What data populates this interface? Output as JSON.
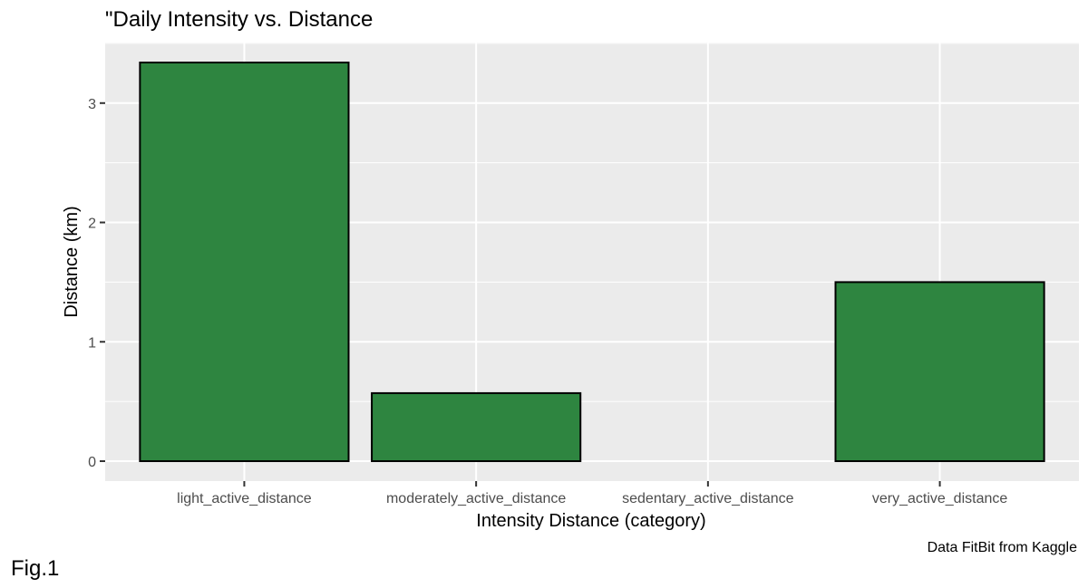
{
  "chart_data": {
    "type": "bar",
    "title": "\"Daily Intensity vs. Distance",
    "xlabel": "Intensity Distance (category)",
    "ylabel": "Distance (km)",
    "caption": "Data FitBit from Kaggle",
    "tag": "Fig.1",
    "categories": [
      "light_active_distance",
      "moderately_active_distance",
      "sedentary_active_distance",
      "very_active_distance"
    ],
    "values": [
      3.34,
      0.57,
      0.0,
      1.5
    ],
    "ylim": [
      -0.167,
      3.507
    ],
    "yticks": [
      0,
      1,
      2,
      3
    ],
    "yticklabels": [
      "0",
      "1",
      "2",
      "3"
    ],
    "grid": true,
    "legend": "none",
    "colors": {
      "bar_fill": "#2e8540",
      "bar_outline": "#000000",
      "panel_background": "#ebebeb",
      "grid": "#ffffff"
    }
  }
}
